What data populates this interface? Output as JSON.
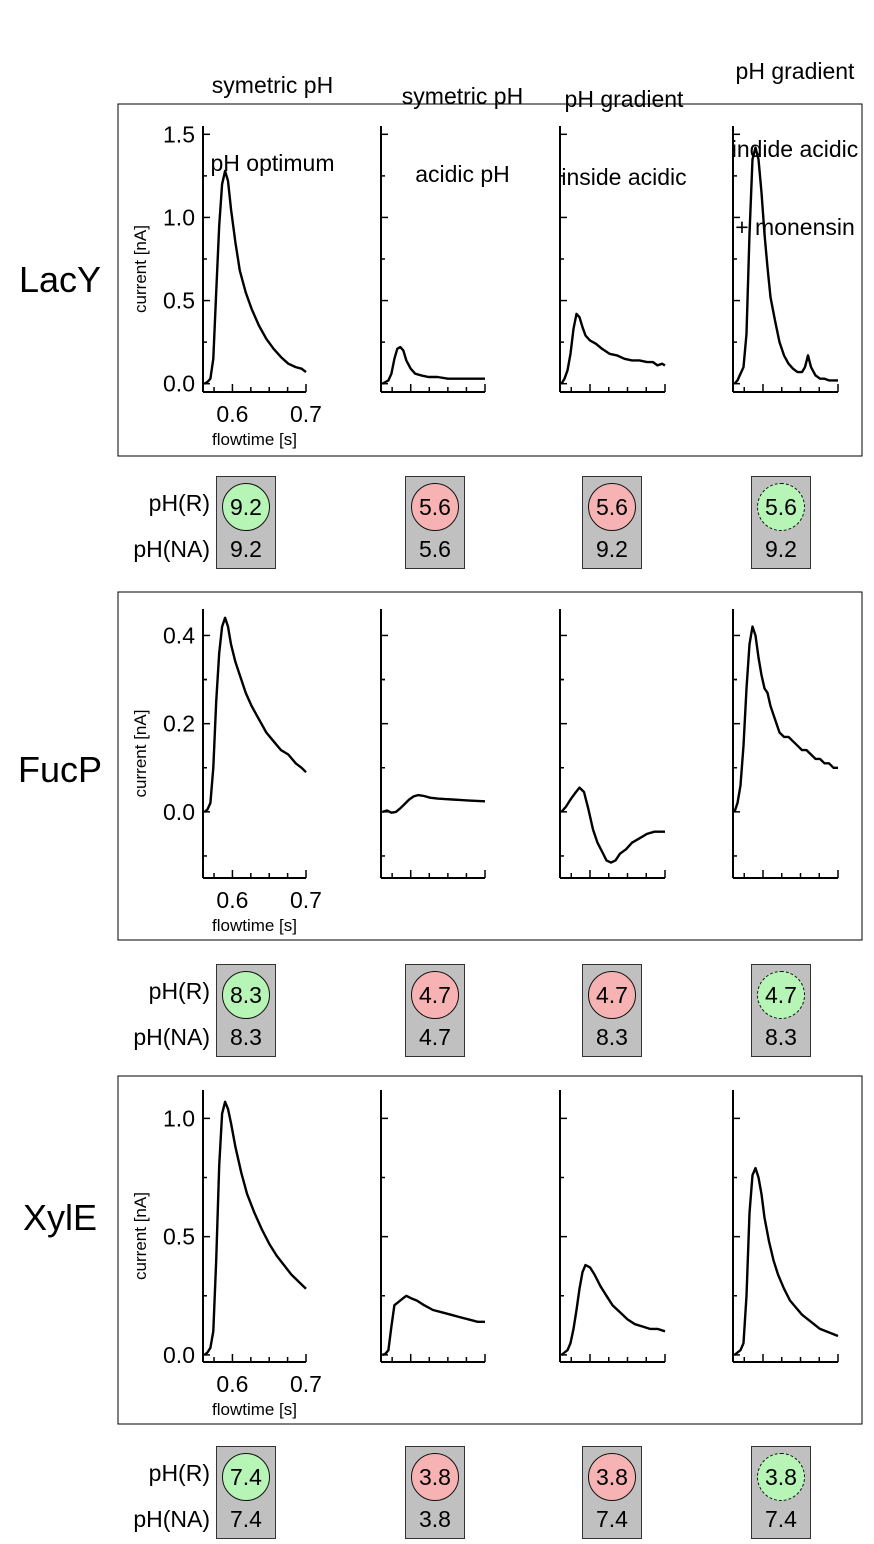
{
  "column_headers": [
    [
      "symetric pH",
      "pH optimum"
    ],
    [
      "symetric pH",
      "acidic pH"
    ],
    [
      "pH gradient",
      "inside acidic"
    ],
    [
      "pH gradient",
      "indide acidic",
      "+ monensin"
    ]
  ],
  "ph_labels": {
    "r": "pH(R)",
    "na": "pH(NA)"
  },
  "colors": {
    "green": "#b7f5b7",
    "red": "#f7b3b3",
    "box": "#c0c0c0"
  },
  "chart_data": [
    {
      "type": "line",
      "protein": "LacY",
      "ylabel": "current [nA]",
      "xlabel": "flowtime [s]",
      "xlim": [
        0.56,
        0.7
      ],
      "ylim": [
        -0.05,
        1.55
      ],
      "yticks": [
        "0.0",
        "0.5",
        "1.0",
        "1.5"
      ],
      "ytick_values": [
        0.0,
        0.5,
        1.0,
        1.5
      ],
      "xticks": [
        "0.6",
        "0.7"
      ],
      "xtick_values": [
        0.6,
        0.7
      ],
      "series": [
        {
          "x": [
            0.562,
            0.566,
            0.57,
            0.574,
            0.578,
            0.582,
            0.586,
            0.59,
            0.594,
            0.598,
            0.604,
            0.61,
            0.618,
            0.626,
            0.636,
            0.646,
            0.656,
            0.666,
            0.676,
            0.686,
            0.694,
            0.7
          ],
          "y": [
            0.0,
            0.01,
            0.03,
            0.15,
            0.55,
            0.95,
            1.2,
            1.28,
            1.22,
            1.05,
            0.85,
            0.68,
            0.55,
            0.45,
            0.35,
            0.27,
            0.21,
            0.16,
            0.12,
            0.1,
            0.09,
            0.07
          ]
        },
        {
          "x": [
            0.562,
            0.566,
            0.57,
            0.574,
            0.578,
            0.582,
            0.586,
            0.59,
            0.594,
            0.6,
            0.606,
            0.614,
            0.624,
            0.636,
            0.65,
            0.666,
            0.684,
            0.7
          ],
          "y": [
            0.0,
            0.01,
            0.02,
            0.06,
            0.15,
            0.21,
            0.22,
            0.2,
            0.14,
            0.09,
            0.06,
            0.05,
            0.04,
            0.04,
            0.03,
            0.03,
            0.03,
            0.03
          ]
        },
        {
          "x": [
            0.562,
            0.566,
            0.57,
            0.574,
            0.578,
            0.582,
            0.586,
            0.59,
            0.594,
            0.6,
            0.608,
            0.616,
            0.626,
            0.636,
            0.646,
            0.656,
            0.666,
            0.676,
            0.684,
            0.69,
            0.696,
            0.7
          ],
          "y": [
            0.0,
            0.03,
            0.08,
            0.18,
            0.33,
            0.42,
            0.4,
            0.34,
            0.29,
            0.26,
            0.24,
            0.21,
            0.18,
            0.17,
            0.15,
            0.14,
            0.14,
            0.13,
            0.13,
            0.11,
            0.12,
            0.11
          ]
        },
        {
          "x": [
            0.562,
            0.566,
            0.57,
            0.574,
            0.578,
            0.582,
            0.586,
            0.59,
            0.594,
            0.598,
            0.602,
            0.606,
            0.61,
            0.616,
            0.622,
            0.628,
            0.634,
            0.64,
            0.646,
            0.652,
            0.656,
            0.66,
            0.664,
            0.67,
            0.676,
            0.682,
            0.688,
            0.694,
            0.7
          ],
          "y": [
            0.0,
            0.02,
            0.06,
            0.1,
            0.3,
            0.9,
            1.35,
            1.42,
            1.35,
            1.15,
            0.9,
            0.7,
            0.52,
            0.38,
            0.25,
            0.17,
            0.12,
            0.09,
            0.07,
            0.07,
            0.1,
            0.17,
            0.1,
            0.05,
            0.03,
            0.03,
            0.02,
            0.02,
            0.02
          ]
        }
      ],
      "ph_r": [
        "9.2",
        "5.6",
        "5.6",
        "5.6"
      ],
      "ph_na": [
        "9.2",
        "5.6",
        "9.2",
        "9.2"
      ]
    },
    {
      "type": "line",
      "protein": "FucP",
      "ylabel": "current [nA]",
      "xlabel": "flowtime [s]",
      "xlim": [
        0.56,
        0.7
      ],
      "ylim": [
        -0.15,
        0.46
      ],
      "yticks": [
        "0.0",
        "0.2",
        "0.4"
      ],
      "ytick_values": [
        0.0,
        0.2,
        0.4
      ],
      "xticks": [
        "0.6",
        "0.7"
      ],
      "xtick_values": [
        0.6,
        0.7
      ],
      "series": [
        {
          "x": [
            0.562,
            0.566,
            0.57,
            0.574,
            0.578,
            0.582,
            0.586,
            0.59,
            0.594,
            0.598,
            0.604,
            0.61,
            0.618,
            0.626,
            0.636,
            0.646,
            0.656,
            0.666,
            0.676,
            0.686,
            0.694,
            0.7
          ],
          "y": [
            0.0,
            0.005,
            0.02,
            0.1,
            0.25,
            0.36,
            0.42,
            0.44,
            0.42,
            0.38,
            0.34,
            0.31,
            0.27,
            0.24,
            0.21,
            0.18,
            0.16,
            0.14,
            0.13,
            0.11,
            0.1,
            0.09
          ]
        },
        {
          "x": [
            0.562,
            0.568,
            0.574,
            0.58,
            0.586,
            0.592,
            0.598,
            0.604,
            0.61,
            0.618,
            0.626,
            0.636,
            0.646,
            0.656,
            0.666,
            0.676,
            0.686,
            0.7
          ],
          "y": [
            0.0,
            0.003,
            -0.002,
            0.0,
            0.008,
            0.018,
            0.028,
            0.035,
            0.038,
            0.036,
            0.032,
            0.03,
            0.029,
            0.028,
            0.027,
            0.026,
            0.025,
            0.024
          ]
        },
        {
          "x": [
            0.562,
            0.568,
            0.574,
            0.58,
            0.586,
            0.592,
            0.598,
            0.604,
            0.61,
            0.616,
            0.622,
            0.628,
            0.634,
            0.64,
            0.648,
            0.656,
            0.666,
            0.676,
            0.686,
            0.7
          ],
          "y": [
            0.0,
            0.012,
            0.028,
            0.042,
            0.055,
            0.045,
            0.005,
            -0.04,
            -0.07,
            -0.09,
            -0.11,
            -0.115,
            -0.11,
            -0.095,
            -0.085,
            -0.07,
            -0.06,
            -0.05,
            -0.045,
            -0.045
          ]
        },
        {
          "x": [
            0.562,
            0.566,
            0.57,
            0.574,
            0.578,
            0.582,
            0.586,
            0.59,
            0.594,
            0.598,
            0.602,
            0.606,
            0.61,
            0.616,
            0.622,
            0.628,
            0.634,
            0.64,
            0.646,
            0.652,
            0.658,
            0.664,
            0.67,
            0.676,
            0.682,
            0.688,
            0.694,
            0.7
          ],
          "y": [
            0.0,
            0.02,
            0.06,
            0.15,
            0.28,
            0.38,
            0.42,
            0.4,
            0.35,
            0.31,
            0.28,
            0.27,
            0.24,
            0.21,
            0.18,
            0.17,
            0.17,
            0.16,
            0.15,
            0.14,
            0.14,
            0.13,
            0.12,
            0.12,
            0.11,
            0.11,
            0.1,
            0.1
          ]
        }
      ],
      "ph_r": [
        "8.3",
        "4.7",
        "4.7",
        "4.7"
      ],
      "ph_na": [
        "8.3",
        "4.7",
        "8.3",
        "8.3"
      ]
    },
    {
      "type": "line",
      "protein": "XylE",
      "ylabel": "current [nA]",
      "xlabel": "flowtime [s]",
      "xlim": [
        0.56,
        0.7
      ],
      "ylim": [
        -0.03,
        1.12
      ],
      "yticks": [
        "0.0",
        "0.5",
        "1.0"
      ],
      "ytick_values": [
        0.0,
        0.5,
        1.0
      ],
      "xticks": [
        "0.6",
        "0.7"
      ],
      "xtick_values": [
        0.6,
        0.7
      ],
      "series": [
        {
          "x": [
            0.562,
            0.566,
            0.57,
            0.574,
            0.578,
            0.582,
            0.586,
            0.59,
            0.594,
            0.598,
            0.604,
            0.612,
            0.62,
            0.63,
            0.64,
            0.65,
            0.66,
            0.67,
            0.68,
            0.69,
            0.7
          ],
          "y": [
            0.0,
            0.01,
            0.03,
            0.1,
            0.4,
            0.8,
            1.02,
            1.07,
            1.04,
            0.98,
            0.88,
            0.77,
            0.68,
            0.6,
            0.53,
            0.47,
            0.42,
            0.38,
            0.34,
            0.31,
            0.28
          ]
        },
        {
          "x": [
            0.562,
            0.566,
            0.57,
            0.574,
            0.578,
            0.582,
            0.586,
            0.59,
            0.594,
            0.6,
            0.608,
            0.618,
            0.63,
            0.642,
            0.654,
            0.666,
            0.678,
            0.69,
            0.7
          ],
          "y": [
            0.0,
            0.005,
            0.02,
            0.12,
            0.21,
            0.22,
            0.23,
            0.24,
            0.25,
            0.24,
            0.23,
            0.21,
            0.19,
            0.18,
            0.17,
            0.16,
            0.15,
            0.14,
            0.14
          ]
        },
        {
          "x": [
            0.562,
            0.566,
            0.57,
            0.574,
            0.578,
            0.582,
            0.586,
            0.59,
            0.594,
            0.6,
            0.606,
            0.614,
            0.622,
            0.63,
            0.64,
            0.65,
            0.66,
            0.67,
            0.68,
            0.69,
            0.7
          ],
          "y": [
            0.0,
            0.01,
            0.02,
            0.05,
            0.11,
            0.19,
            0.28,
            0.35,
            0.38,
            0.37,
            0.34,
            0.29,
            0.25,
            0.21,
            0.18,
            0.15,
            0.13,
            0.12,
            0.11,
            0.11,
            0.1
          ]
        },
        {
          "x": [
            0.562,
            0.566,
            0.57,
            0.574,
            0.578,
            0.582,
            0.586,
            0.59,
            0.594,
            0.598,
            0.602,
            0.608,
            0.614,
            0.62,
            0.628,
            0.636,
            0.644,
            0.652,
            0.66,
            0.668,
            0.676,
            0.684,
            0.692,
            0.7
          ],
          "y": [
            0.0,
            0.01,
            0.02,
            0.05,
            0.25,
            0.6,
            0.76,
            0.79,
            0.75,
            0.68,
            0.58,
            0.48,
            0.4,
            0.34,
            0.28,
            0.23,
            0.2,
            0.17,
            0.15,
            0.13,
            0.11,
            0.1,
            0.09,
            0.08
          ]
        }
      ],
      "ph_r": [
        "7.4",
        "3.8",
        "3.8",
        "3.8"
      ],
      "ph_na": [
        "7.4",
        "3.8",
        "7.4",
        "7.4"
      ]
    }
  ]
}
